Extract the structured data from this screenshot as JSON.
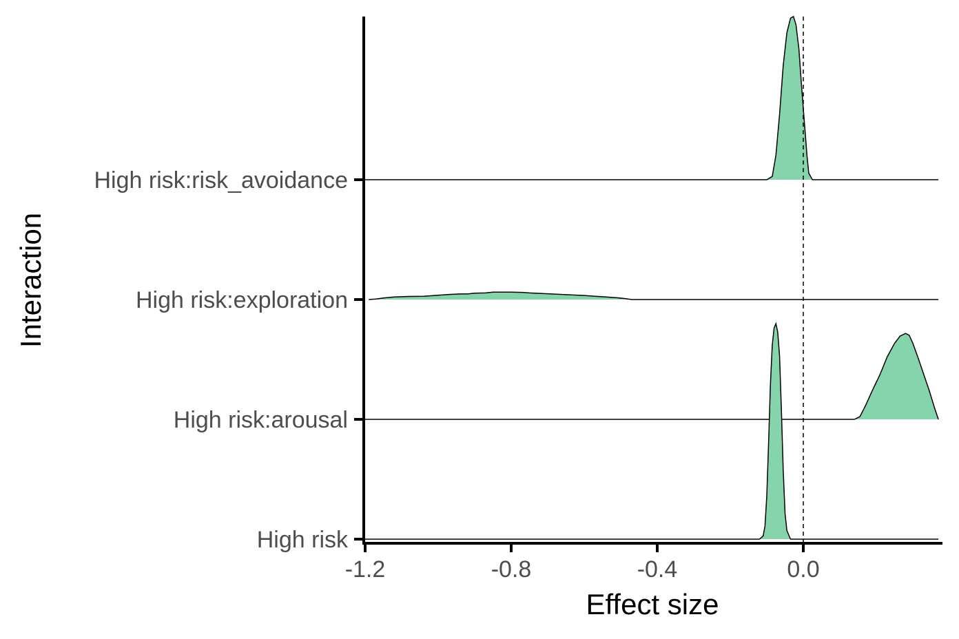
{
  "chart_data": {
    "type": "area",
    "subtype": "ridgeline-density",
    "title": "",
    "xlabel": "Effect size",
    "ylabel": "Interaction",
    "xlim": [
      -1.2,
      0.38
    ],
    "x_ticks": [
      -1.2,
      -0.8,
      -0.4,
      0.0
    ],
    "x_tick_labels": [
      "-1.2",
      "-0.8",
      "-0.4",
      "0.0"
    ],
    "reference_line": {
      "x": 0.0,
      "style": "dashed"
    },
    "grid": false,
    "legend": "none",
    "fill_color": "#86D4AC",
    "line_color": "#000000",
    "categories": [
      "High risk",
      "High risk:arousal",
      "High risk:exploration",
      "High risk:risk_avoidance"
    ],
    "series": [
      {
        "name": "High risk",
        "x_range": [
          -1.2,
          0.37
        ],
        "density": [
          [
            -0.12,
            0.0
          ],
          [
            -0.11,
            0.015
          ],
          [
            -0.105,
            0.06
          ],
          [
            -0.1,
            0.2
          ],
          [
            -0.095,
            0.45
          ],
          [
            -0.09,
            0.72
          ],
          [
            -0.085,
            0.9
          ],
          [
            -0.08,
            0.98
          ],
          [
            -0.075,
            1.0
          ],
          [
            -0.07,
            0.96
          ],
          [
            -0.065,
            0.85
          ],
          [
            -0.06,
            0.6
          ],
          [
            -0.055,
            0.32
          ],
          [
            -0.05,
            0.12
          ],
          [
            -0.045,
            0.04
          ],
          [
            -0.035,
            0.0
          ]
        ]
      },
      {
        "name": "High risk:arousal",
        "x_range": [
          -1.2,
          0.37
        ],
        "density": [
          [
            0.14,
            0.0
          ],
          [
            0.155,
            0.03
          ],
          [
            0.17,
            0.15
          ],
          [
            0.19,
            0.33
          ],
          [
            0.21,
            0.5
          ],
          [
            0.23,
            0.7
          ],
          [
            0.25,
            0.85
          ],
          [
            0.265,
            0.93
          ],
          [
            0.28,
            0.96
          ],
          [
            0.29,
            0.94
          ],
          [
            0.3,
            0.85
          ],
          [
            0.315,
            0.68
          ],
          [
            0.33,
            0.5
          ],
          [
            0.345,
            0.32
          ],
          [
            0.36,
            0.12
          ],
          [
            0.37,
            0.0
          ]
        ]
      },
      {
        "name": "High risk:exploration",
        "x_range": [
          -1.19,
          0.37
        ],
        "density": [
          [
            -1.19,
            0.0
          ],
          [
            -1.17,
            0.02
          ],
          [
            -1.15,
            0.06
          ],
          [
            -1.12,
            0.1
          ],
          [
            -1.08,
            0.12
          ],
          [
            -1.04,
            0.13
          ],
          [
            -1.0,
            0.17
          ],
          [
            -0.97,
            0.2
          ],
          [
            -0.94,
            0.22
          ],
          [
            -0.92,
            0.22
          ],
          [
            -0.9,
            0.25
          ],
          [
            -0.87,
            0.26
          ],
          [
            -0.85,
            0.29
          ],
          [
            -0.82,
            0.29
          ],
          [
            -0.8,
            0.29
          ],
          [
            -0.77,
            0.28
          ],
          [
            -0.75,
            0.26
          ],
          [
            -0.72,
            0.24
          ],
          [
            -0.69,
            0.22
          ],
          [
            -0.66,
            0.2
          ],
          [
            -0.63,
            0.18
          ],
          [
            -0.6,
            0.16
          ],
          [
            -0.57,
            0.13
          ],
          [
            -0.54,
            0.1
          ],
          [
            -0.51,
            0.07
          ],
          [
            -0.49,
            0.04
          ],
          [
            -0.47,
            0.0
          ]
        ]
      },
      {
        "name": "High risk:risk_avoidance",
        "x_range": [
          -1.2,
          0.37
        ],
        "density": [
          [
            -0.1,
            0.0
          ],
          [
            -0.085,
            0.02
          ],
          [
            -0.075,
            0.15
          ],
          [
            -0.065,
            0.4
          ],
          [
            -0.055,
            0.7
          ],
          [
            -0.045,
            0.9
          ],
          [
            -0.035,
            0.99
          ],
          [
            -0.027,
            1.0
          ],
          [
            -0.02,
            0.95
          ],
          [
            -0.012,
            0.8
          ],
          [
            -0.005,
            0.58
          ],
          [
            0.003,
            0.35
          ],
          [
            0.01,
            0.15
          ],
          [
            0.015,
            0.04
          ],
          [
            0.025,
            0.0
          ]
        ]
      }
    ]
  }
}
